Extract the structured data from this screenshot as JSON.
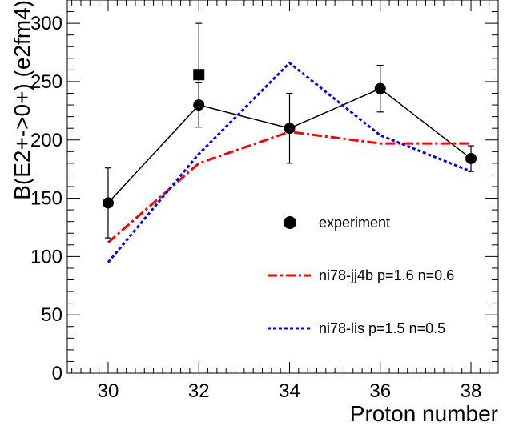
{
  "chart_data": {
    "type": "line",
    "title": "",
    "xlabel": "Proton number",
    "ylabel": "B(E2+->0+) (e2fm4)",
    "xlim": [
      29.1,
      38.6
    ],
    "ylim": [
      0,
      320
    ],
    "x_ticks": [
      30,
      32,
      34,
      36,
      38
    ],
    "y_ticks": [
      0,
      50,
      100,
      150,
      200,
      250,
      300
    ],
    "grid": false,
    "legend_placement": "right-middle",
    "series": [
      {
        "name": "experiment",
        "marker": "circle",
        "line_style": "solid",
        "color": "#000000",
        "x": [
          30,
          32,
          34,
          36,
          38
        ],
        "y": [
          146,
          230,
          210,
          244,
          184
        ],
        "yerr": [
          30,
          19,
          30,
          20,
          11
        ]
      },
      {
        "name": "ni78-jj4b p=1.6 n=0.6",
        "line_style": "dash-dot",
        "color": "#ff0000",
        "x": [
          30,
          32,
          34,
          36,
          38
        ],
        "y": [
          112,
          180,
          207,
          197,
          197
        ]
      },
      {
        "name": "ni78-lis p=1.5 n=0.5",
        "line_style": "dotted",
        "color": "#0000ff",
        "x": [
          30,
          32,
          34,
          36,
          38
        ],
        "y": [
          95,
          188,
          266,
          204,
          173
        ]
      }
    ],
    "extra_points": [
      {
        "marker": "square",
        "color": "#000000",
        "x": 32,
        "y": 256,
        "yerr": 44
      }
    ]
  }
}
